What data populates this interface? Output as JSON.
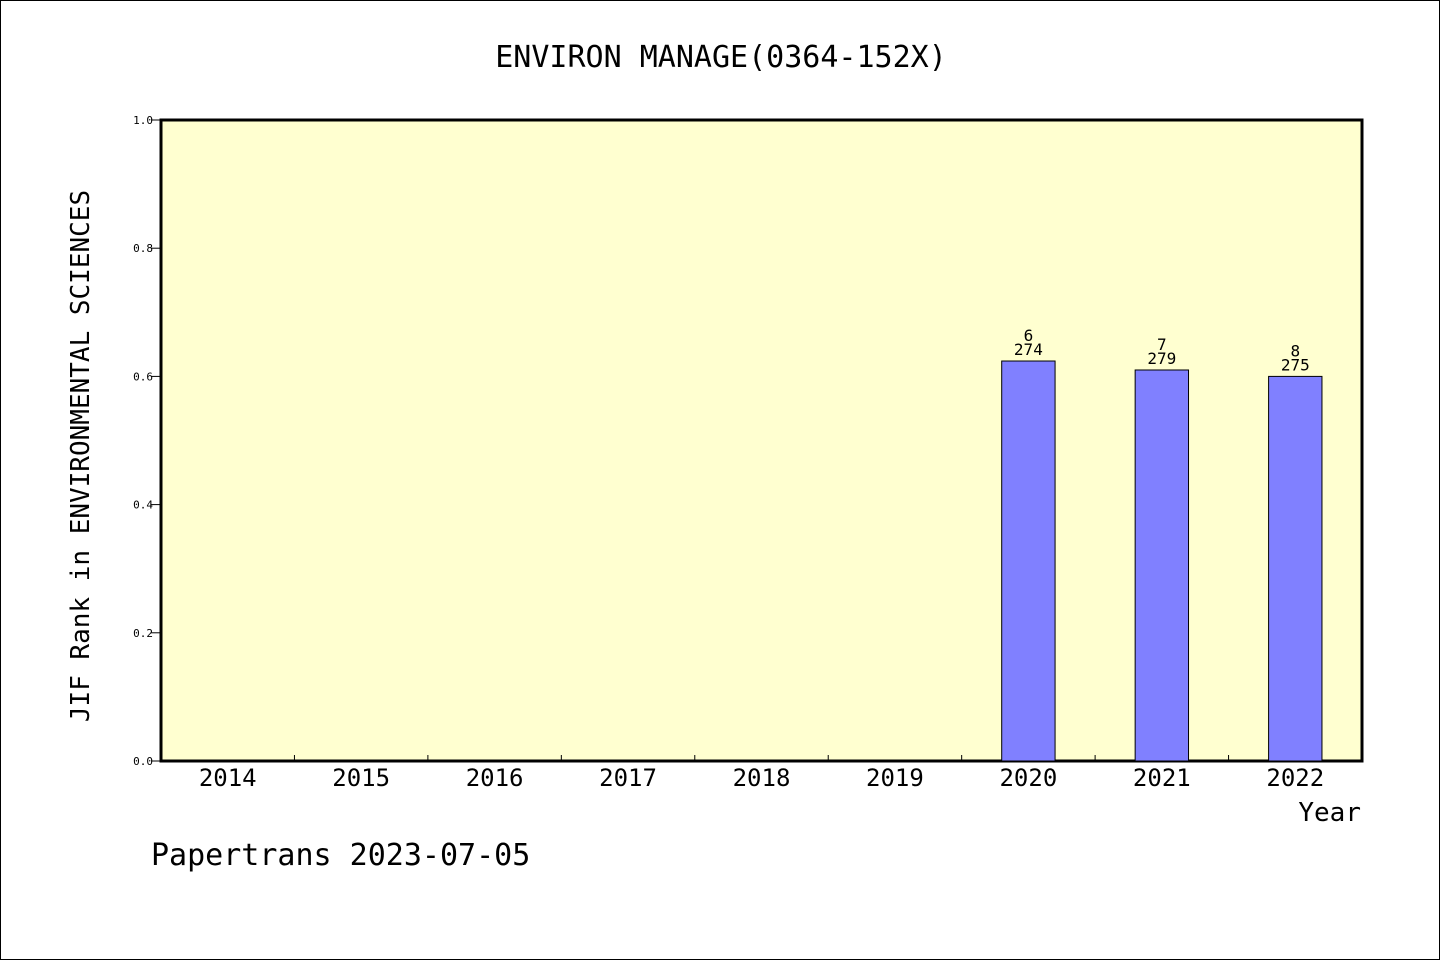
{
  "chart_data": {
    "type": "bar",
    "title": "ENVIRON MANAGE(0364-152X)",
    "xlabel": "Year",
    "ylabel": "JIF Rank in ENVIRONMENTAL SCIENCES",
    "categories": [
      "2014",
      "2015",
      "2016",
      "2017",
      "2018",
      "2019",
      "2020",
      "2021",
      "2022"
    ],
    "values": [
      null,
      null,
      null,
      null,
      null,
      null,
      0.624,
      0.61,
      0.6
    ],
    "rank_labels": [
      null,
      null,
      null,
      null,
      null,
      null,
      {
        "rank": "6",
        "total": "274"
      },
      {
        "rank": "7",
        "total": "279"
      },
      {
        "rank": "8",
        "total": "275"
      }
    ],
    "ylim": [
      0,
      1.0
    ],
    "yticks": [
      "0.0",
      "0.2",
      "0.4",
      "0.6",
      "0.8",
      "1.0"
    ],
    "grid": false,
    "legend": "none"
  },
  "footer": {
    "text": "Papertrans 2023-07-05"
  },
  "colors": {
    "plot_background": "#ffffd0",
    "bar_fill": "#8080ff",
    "bar_stroke": "#000000",
    "frame": "#000000"
  }
}
